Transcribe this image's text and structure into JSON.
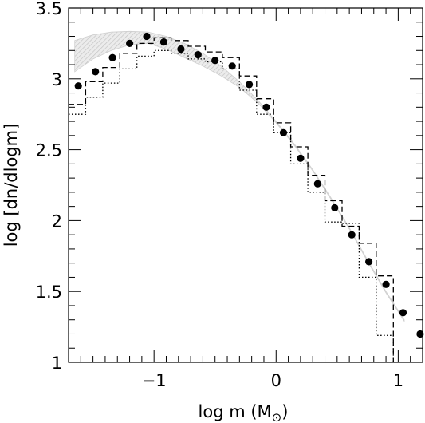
{
  "chart_data": {
    "type": "line",
    "xlabel": "log m (M",
    "xlabel_symbol": "⊙",
    "xlabel_close": ")",
    "ylabel": "log [dn/dlogm]",
    "xlim": [
      -1.7,
      1.2
    ],
    "ylim": [
      1.0,
      3.5
    ],
    "x_ticks": [
      {
        "value": -1,
        "label": "−1"
      },
      {
        "value": 0,
        "label": "0"
      },
      {
        "value": 1,
        "label": "1"
      }
    ],
    "y_ticks": [
      {
        "value": 1,
        "label": "1"
      },
      {
        "value": 1.5,
        "label": "1.5"
      },
      {
        "value": 2,
        "label": "2"
      },
      {
        "value": 2.5,
        "label": "2.5"
      },
      {
        "value": 3,
        "label": "3"
      },
      {
        "value": 3.5,
        "label": "3.5"
      }
    ],
    "grid": false,
    "series": [
      {
        "style": "filled-circles",
        "color": "#000000",
        "points": [
          [
            -1.62,
            2.95
          ],
          [
            -1.48,
            3.05
          ],
          [
            -1.34,
            3.15
          ],
          [
            -1.2,
            3.25
          ],
          [
            -1.06,
            3.3
          ],
          [
            -0.92,
            3.26
          ],
          [
            -0.78,
            3.21
          ],
          [
            -0.64,
            3.17
          ],
          [
            -0.5,
            3.13
          ],
          [
            -0.36,
            3.09
          ],
          [
            -0.22,
            2.96
          ],
          [
            -0.08,
            2.8
          ],
          [
            0.06,
            2.62
          ],
          [
            0.2,
            2.44
          ],
          [
            0.34,
            2.26
          ],
          [
            0.48,
            2.09
          ],
          [
            0.62,
            1.9
          ],
          [
            0.76,
            1.71
          ],
          [
            0.9,
            1.55
          ],
          [
            1.04,
            1.35
          ],
          [
            1.18,
            1.2
          ]
        ]
      },
      {
        "style": "dashed-step",
        "color": "#000000",
        "edges": [
          -1.7,
          -1.56,
          -1.42,
          -1.28,
          -1.14,
          -1.0,
          -0.86,
          -0.72,
          -0.58,
          -0.44,
          -0.3,
          -0.16,
          -0.02,
          0.12,
          0.26,
          0.4,
          0.54,
          0.68,
          0.82,
          0.96
        ],
        "values": [
          2.82,
          2.98,
          3.08,
          3.18,
          3.25,
          3.29,
          3.27,
          3.23,
          3.19,
          3.15,
          3.02,
          2.86,
          2.69,
          2.52,
          2.32,
          2.14,
          1.96,
          1.84,
          1.61
        ]
      },
      {
        "style": "dotted-step",
        "color": "#000000",
        "edges": [
          -1.7,
          -1.56,
          -1.42,
          -1.28,
          -1.14,
          -1.0,
          -0.86,
          -0.72,
          -0.58,
          -0.44,
          -0.3,
          -0.16,
          -0.02,
          0.12,
          0.26,
          0.4,
          0.54,
          0.68,
          0.82,
          0.96
        ],
        "values": [
          2.75,
          2.87,
          2.97,
          3.07,
          3.16,
          3.2,
          3.18,
          3.14,
          3.12,
          3.07,
          2.92,
          2.75,
          2.62,
          2.4,
          2.2,
          1.99,
          1.98,
          1.6,
          1.19
        ]
      },
      {
        "style": "shaded-band",
        "color": "#bbbbbb",
        "x": [
          -1.65,
          -1.5,
          -1.35,
          -1.2,
          -1.05,
          -0.9,
          -0.75,
          -0.6,
          -0.45,
          -0.3,
          -0.15,
          0.0,
          0.15,
          0.3,
          0.45,
          0.6,
          0.75,
          0.9,
          1.05
        ],
        "upper": [
          3.27,
          3.31,
          3.33,
          3.335,
          3.33,
          3.3,
          3.25,
          3.18,
          3.09,
          2.98,
          2.85,
          2.7,
          2.54,
          2.36,
          2.16,
          1.95,
          1.72,
          1.5,
          1.3
        ],
        "lower": [
          3.05,
          3.14,
          3.2,
          3.24,
          3.25,
          3.21,
          3.15,
          3.09,
          3.02,
          2.94,
          2.83,
          2.69,
          2.53,
          2.35,
          2.15,
          1.94,
          1.71,
          1.49,
          1.29
        ]
      }
    ]
  }
}
